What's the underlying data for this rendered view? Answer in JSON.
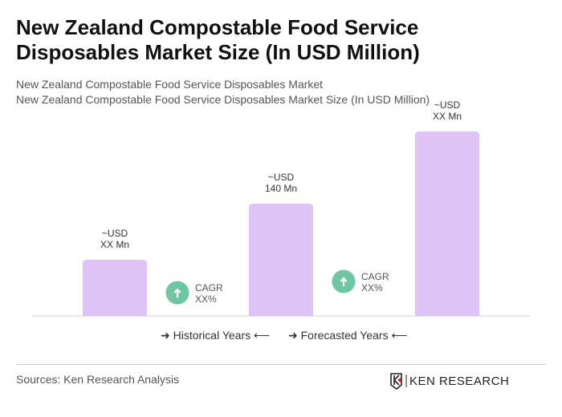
{
  "header": {
    "title": "New Zealand Compostable Food Service Disposables Market Size (In USD Million)",
    "subtitle1": "New Zealand Compostable Food Service Disposables Market",
    "subtitle2": "New Zealand Compostable Food Service Disposables Market Size (In USD Million)"
  },
  "chart_data": {
    "type": "bar",
    "bars": [
      {
        "label_line1": "~USD",
        "label_line2": "XX Mn",
        "value": 70
      },
      {
        "label_line1": "~USD",
        "label_line2": "140 Mn",
        "value": 140
      },
      {
        "label_line1": "~USD",
        "label_line2": "XX Mn",
        "value": 230
      }
    ],
    "cagr": [
      {
        "line1": "CAGR",
        "line2": "XX%"
      },
      {
        "line1": "CAGR",
        "line2": "XX%"
      }
    ],
    "legend": {
      "historical": "Historical Years",
      "forecasted": "Forecasted Years"
    },
    "bar_color": "#dfc3f7",
    "cagr_color": "#6fc6a2",
    "grid": false
  },
  "footer": {
    "sources": "Sources: Ken Research Analysis",
    "logo_text": "KEN RESEARCH"
  }
}
